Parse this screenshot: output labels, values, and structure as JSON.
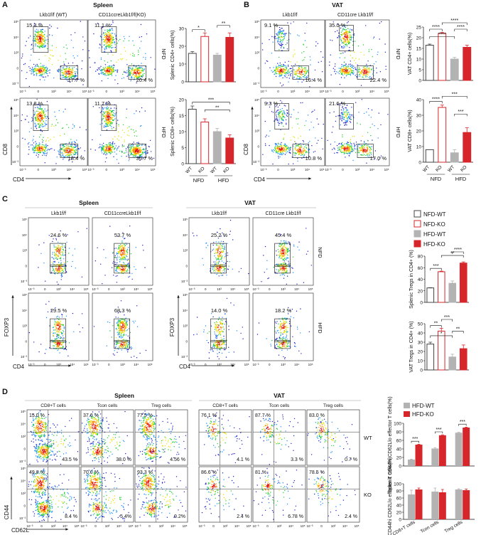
{
  "panels": [
    {
      "letter": "A",
      "title": "Spleen"
    },
    {
      "letter": "B",
      "title": "VAT"
    },
    {
      "letter": "C",
      "title": "Spleen",
      "title2": "VAT"
    },
    {
      "letter": "D",
      "title": "Spleen",
      "title2": "VAT"
    }
  ],
  "colors": {
    "nfd_wt": "#ffffff",
    "nfd_ko": "#ffffff",
    "hfd_wt": "#b3b3b3",
    "hfd_ko": "#d7262b",
    "nfd_ko_stroke": "#d7262b",
    "hfd_ko_bar": "#d7262b"
  },
  "panelA": {
    "col_headers": [
      "Lkb1f/f (WT)",
      "CD11ccreLkb1f/f(KO)"
    ],
    "row_labels": [
      "NFD",
      "HFD"
    ],
    "xaxis": "CD4",
    "yaxis": "CD8",
    "plots": [
      {
        "tl": "15.3 %",
        "br": "17.7 %"
      },
      {
        "tl": "11.1 %",
        "br": "20.4 %"
      },
      {
        "tl": "13.8 %",
        "br": "18.4 %"
      },
      {
        "tl": "11.7 %",
        "br": "35.7 %"
      }
    ]
  },
  "panelB": {
    "col_headers": [
      "Lkb1f/f",
      "CD11cre Lkb1f/f"
    ],
    "row_labels": [
      "NFD",
      "HFD"
    ],
    "xaxis": "CD4",
    "yaxis": "CD8",
    "plots": [
      {
        "tl": "9.1 %",
        "br": "16.4 %"
      },
      {
        "tl": "35.0 %",
        "br": "22.4 %"
      },
      {
        "tl": "9.3 %",
        "br": "10.8 %"
      },
      {
        "tl": "21.6 %",
        "br": "17.0 %"
      }
    ]
  },
  "panelC": {
    "col_headers": [
      "Lkb1f/f",
      "CD11ccreLkb1f/f",
      "Lkb1f/f",
      "CD11cre Lkb1f/f"
    ],
    "row_labels": [
      "NFD",
      "HFD"
    ],
    "xaxis": "CD4",
    "yaxis": "FOXP3",
    "plots": [
      {
        "v": "24.6 %"
      },
      {
        "v": "53.7 %"
      },
      {
        "v": "25.2 %"
      },
      {
        "v": "45.4 %"
      },
      {
        "v": "29.5 %"
      },
      {
        "v": "68.3 %"
      },
      {
        "v": "14.0 %"
      },
      {
        "v": "18.2 %"
      }
    ],
    "legend": [
      "NFD-WT",
      "NFD-KO",
      "HFD-WT",
      "HFD-KO"
    ]
  },
  "panelD": {
    "col_headers": [
      "CD8+T cells",
      "Tcon cells",
      "Treg cells",
      "CD8+T cells",
      "Tcon cells",
      "Treg cells"
    ],
    "row_labels": [
      "WT",
      "KO"
    ],
    "xaxis": "CD62L",
    "yaxis": "CD44",
    "plots": [
      {
        "tl": "15.0 %",
        "br": "43.5 %"
      },
      {
        "tl": "37.6 %",
        "br": "38.0 %"
      },
      {
        "tl": "77.5 %",
        "br": "4.56 %"
      },
      {
        "tl": "76.1 %",
        "br": "4.1 %"
      },
      {
        "tl": "87.7 %",
        "br": "3.3 %"
      },
      {
        "tl": "83.0 %",
        "br": "0.7 %"
      },
      {
        "tl": "49.8 %",
        "br": "8.4 %"
      },
      {
        "tl": "70.0 %",
        "br": "5.4%"
      },
      {
        "tl": "93.3 %",
        "br": "0.2%"
      },
      {
        "tl": "86.6 %",
        "br": "2.4 %"
      },
      {
        "tl": "81 %",
        "br": "6.78 %"
      },
      {
        "tl": "78.5 %",
        "br": "2.4 %"
      }
    ],
    "legend": [
      "HFD-WT",
      "HFD-KO"
    ]
  },
  "chart_data": [
    {
      "type": "bar",
      "id": "A-top",
      "ylabel": "Splenic CD4+ cells(%)",
      "ylim": [
        0,
        30
      ],
      "yticks": [
        0,
        10,
        20,
        30
      ],
      "categories": [
        "WT",
        "KO",
        "WT",
        "KO"
      ],
      "groups": [
        "NFD",
        "HFD"
      ],
      "values": [
        16,
        25.5,
        15,
        25
      ],
      "errors": [
        1,
        2,
        1,
        2.5
      ],
      "sig": [
        {
          "pair": [
            0,
            1
          ],
          "label": "*"
        },
        {
          "pair": [
            2,
            3
          ],
          "label": "**"
        }
      ]
    },
    {
      "type": "bar",
      "id": "A-bottom",
      "ylabel": "Splenic CD8+ cells(%)",
      "ylim": [
        0,
        20
      ],
      "yticks": [
        0,
        5,
        10,
        15,
        20
      ],
      "categories": [
        "WT",
        "KO",
        "WT",
        "KO"
      ],
      "groups": [
        "NFD",
        "HFD"
      ],
      "values": [
        17,
        13,
        10,
        8
      ],
      "errors": [
        1,
        1,
        1,
        1
      ],
      "sig": [
        {
          "pair": [
            0,
            3
          ],
          "label": "***"
        },
        {
          "pair": [
            1,
            3
          ],
          "label": "**"
        }
      ]
    },
    {
      "type": "bar",
      "id": "B-top",
      "ylabel": "VAT CD4+ cells(%)",
      "ylim": [
        0,
        25
      ],
      "yticks": [
        0,
        5,
        10,
        15,
        20,
        25
      ],
      "categories": [
        "WT",
        "KO",
        "WT",
        "KO"
      ],
      "groups": [
        "NFD",
        "HFD"
      ],
      "values": [
        16.5,
        22,
        10,
        15.5
      ],
      "errors": [
        0.5,
        0.5,
        0.8,
        1
      ],
      "sig": [
        {
          "pair": [
            0,
            1
          ],
          "label": "****"
        },
        {
          "pair": [
            0,
            2
          ],
          "label": "****"
        },
        {
          "pair": [
            1,
            3
          ],
          "label": "****"
        },
        {
          "pair": [
            2,
            3
          ],
          "label": "****"
        }
      ]
    },
    {
      "type": "bar",
      "id": "B-bottom",
      "ylabel": "VAT CD8+ cells(%)",
      "ylim": [
        0,
        40
      ],
      "yticks": [
        0,
        10,
        20,
        30,
        40
      ],
      "categories": [
        "WT",
        "KO",
        "WT",
        "KO"
      ],
      "groups": [
        "NFD",
        "HFD"
      ],
      "values": [
        8,
        35,
        6,
        19
      ],
      "errors": [
        0,
        1.5,
        2,
        3
      ],
      "sig": [
        {
          "pair": [
            0,
            1
          ],
          "label": "****"
        },
        {
          "pair": [
            1,
            3
          ],
          "label": "***"
        },
        {
          "pair": [
            2,
            3
          ],
          "label": "***"
        }
      ]
    },
    {
      "type": "bar",
      "id": "C-top",
      "ylabel": "Splenic Tregs in CD4+ (%)",
      "ylim": [
        0,
        80
      ],
      "yticks": [
        0,
        20,
        40,
        60,
        80
      ],
      "categories": [
        "NFD-WT",
        "NFD-KO",
        "HFD-WT",
        "HFD-KO"
      ],
      "values": [
        25,
        53,
        33,
        68
      ],
      "errors": [
        0.5,
        1,
        4,
        2
      ],
      "sig": [
        {
          "pair": [
            0,
            1
          ],
          "label": "***"
        },
        {
          "pair": [
            1,
            3
          ],
          "label": "**"
        },
        {
          "pair": [
            2,
            3
          ],
          "label": "****"
        }
      ]
    },
    {
      "type": "bar",
      "id": "C-bottom",
      "ylabel": "VAT Tregs in CD4+ (%)",
      "ylim": [
        0,
        50
      ],
      "yticks": [
        0,
        10,
        20,
        30,
        40,
        50
      ],
      "categories": [
        "NFD-WT",
        "NFD-KO",
        "HFD-WT",
        "HFD-KO"
      ],
      "values": [
        28,
        42,
        14,
        23
      ],
      "errors": [
        2,
        3,
        3,
        4
      ],
      "sig": [
        {
          "pair": [
            0,
            1
          ],
          "label": "**"
        },
        {
          "pair": [
            0,
            2
          ],
          "label": "*"
        },
        {
          "pair": [
            1,
            2
          ],
          "label": "***"
        },
        {
          "pair": [
            2,
            3
          ],
          "label": "**"
        }
      ]
    },
    {
      "type": "bar",
      "id": "D-top",
      "ylabel": "Splenic CD44hi CD62Llo effector T cells(%)",
      "ylim": [
        0,
        100
      ],
      "yticks": [
        0,
        20,
        40,
        60,
        80,
        100
      ],
      "categories": [
        "CD8+T cells",
        "Tcon cells",
        "Treg cells"
      ],
      "series": [
        {
          "name": "HFD-WT",
          "values": [
            15,
            41,
            78
          ],
          "errors": [
            1,
            2,
            1
          ]
        },
        {
          "name": "HFD-KO",
          "values": [
            50,
            72,
            90
          ],
          "errors": [
            1,
            1,
            1
          ]
        }
      ],
      "sig": [
        "***",
        "***",
        "***"
      ]
    },
    {
      "type": "bar",
      "id": "D-bottom",
      "ylabel": "VAT CD44hi CD62Llo effector T cells(%)",
      "ylim": [
        0,
        100
      ],
      "yticks": [
        0,
        20,
        40,
        60,
        80,
        100
      ],
      "categories": [
        "CD8+T cells",
        "Tcon cells",
        "Treg cells"
      ],
      "series": [
        {
          "name": "HFD-WT",
          "values": [
            70,
            78,
            84
          ],
          "errors": [
            12,
            10,
            2
          ]
        },
        {
          "name": "HFD-KO",
          "values": [
            84,
            76,
            82
          ],
          "errors": [
            4,
            8,
            3
          ]
        }
      ]
    }
  ]
}
